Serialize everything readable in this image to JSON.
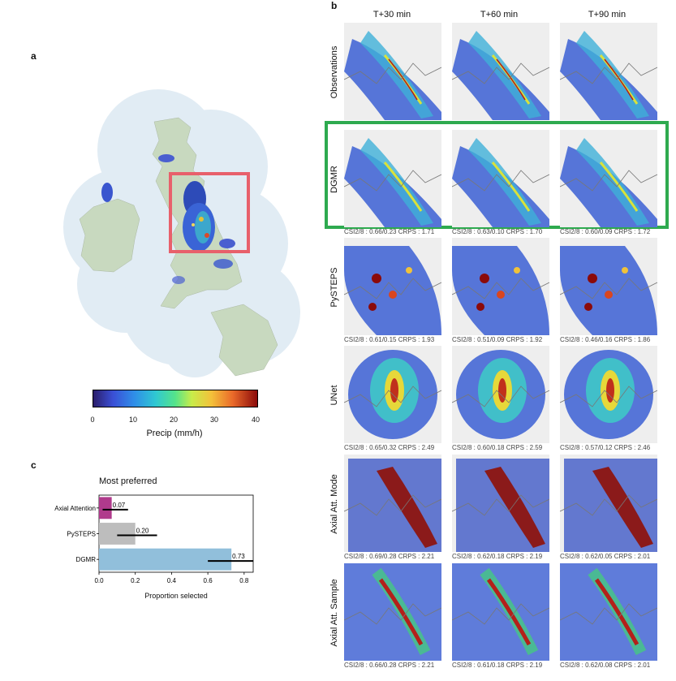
{
  "panel_a": {
    "letter": "a",
    "colorbar": {
      "ticks": [
        "0",
        "10",
        "20",
        "30",
        "40"
      ],
      "label": "Precip (mm/h)"
    }
  },
  "panel_b": {
    "letter": "b",
    "columns": [
      "T+30 min",
      "T+60 min",
      "T+90 min"
    ],
    "rows": [
      {
        "label": "Observations",
        "metrics": [
          "",
          "",
          ""
        ]
      },
      {
        "label": "DGMR",
        "metrics": [
          "CSI2/8 : 0.66/0.23 CRPS : 1.71",
          "CSI2/8 : 0.63/0.10 CRPS : 1.70",
          "CSI2/8 : 0.60/0.09 CRPS : 1.72"
        ]
      },
      {
        "label": "PySTEPS",
        "metrics": [
          "CSI2/8 : 0.61/0.15 CRPS : 1.93",
          "CSI2/8 : 0.51/0.09 CRPS : 1.92",
          "CSI2/8 : 0.46/0.16 CRPS : 1.86"
        ]
      },
      {
        "label": "UNet",
        "metrics": [
          "CSI2/8 : 0.65/0.32 CRPS : 2.49",
          "CSI2/8 : 0.60/0.18 CRPS : 2.59",
          "CSI2/8 : 0.57/0.12 CRPS : 2.46"
        ]
      },
      {
        "label": "Axial Att. Mode",
        "metrics": [
          "CSI2/8 : 0.69/0.28 CRPS : 2.21",
          "CSI2/8 : 0.62/0.18 CRPS : 2.19",
          "CSI2/8 : 0.62/0.05 CRPS : 2.01"
        ]
      },
      {
        "label": "Axial Att. Sample",
        "metrics": [
          "CSI2/8 : 0.66/0.28 CRPS : 2.21",
          "CSI2/8 : 0.61/0.18 CRPS : 2.19",
          "CSI2/8 : 0.62/0.08 CRPS : 2.01"
        ]
      }
    ],
    "highlight_color": "#2eaa4f"
  },
  "panel_c": {
    "letter": "c",
    "chart_data": {
      "type": "bar",
      "orientation": "horizontal",
      "title": "Most preferred",
      "xlabel": "Proportion selected",
      "ylabel": "",
      "xlim": [
        0,
        0.85
      ],
      "xticks": [
        "0.0",
        "0.2",
        "0.4",
        "0.6",
        "0.8"
      ],
      "categories": [
        "Axial Attention",
        "PySTEPS",
        "DGMR"
      ],
      "values": [
        0.07,
        0.2,
        0.73
      ],
      "value_labels": [
        "0.07",
        "0.20",
        "0.73"
      ],
      "error_low": [
        0.02,
        0.1,
        0.6
      ],
      "error_high": [
        0.16,
        0.32,
        0.85
      ],
      "colors": [
        "#b03a8c",
        "#bdbdbd",
        "#91bfdb"
      ]
    }
  }
}
